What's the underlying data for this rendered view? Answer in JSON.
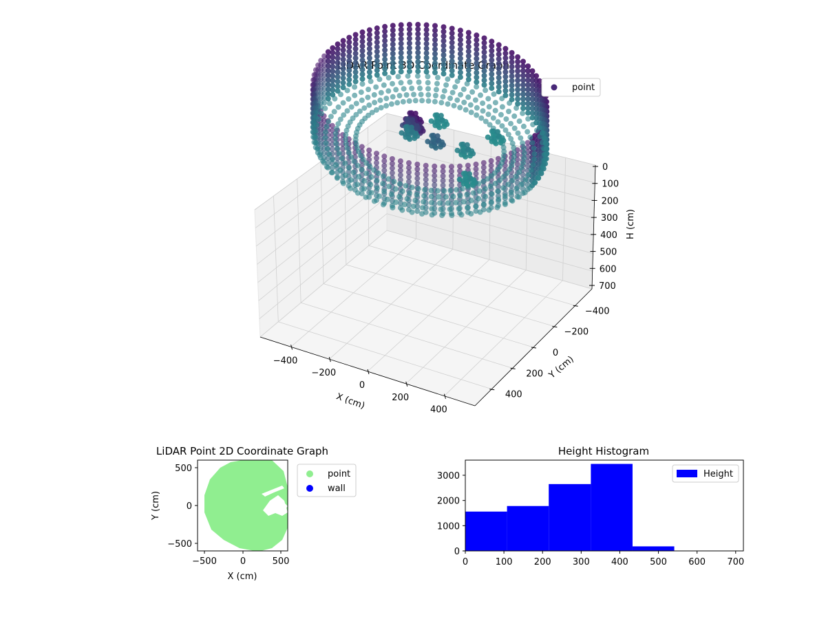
{
  "chart_data": [
    {
      "type": "scatter",
      "projection": "3d",
      "title": "LiDAR Point 3D Coordinate Graph",
      "xlabel": "X (cm)",
      "ylabel": "Y (cm)",
      "zlabel": "H (cm)",
      "xlim": [
        -560,
        560
      ],
      "ylim": [
        -560,
        560
      ],
      "zlim": [
        720,
        0
      ],
      "z_axis_inverted": true,
      "x_ticks": [
        "−400",
        "−200",
        "0",
        "200",
        "400"
      ],
      "y_ticks": [
        "−400",
        "−200",
        "0",
        "200",
        "400"
      ],
      "z_ticks": [
        "0",
        "100",
        "200",
        "300",
        "400",
        "500",
        "600",
        "700"
      ],
      "legend": {
        "placement": "top-right",
        "entries": [
          "point"
        ]
      },
      "colormap": "viridis (dark purple at high points, teal at low points)",
      "marker_color": "#482878",
      "grid": true,
      "series": [
        {
          "name": "point",
          "description_shape": "cylindrical wall ring of radius ~520 cm spanning heights ~0-300 cm, inner floor ring ~330 cm and central clutter",
          "wall_ring": {
            "radius": 520,
            "h_min": 0,
            "h_max": 300
          },
          "floor_ring": {
            "radius": 330,
            "h": 300
          },
          "center_clutter": [
            {
              "x": 20,
              "y": 180,
              "h": 0
            },
            {
              "x": 40,
              "y": 200,
              "h": 30
            },
            {
              "x": 0,
              "y": 150,
              "h": 60
            },
            {
              "x": -40,
              "y": 100,
              "h": 120
            },
            {
              "x": 60,
              "y": 50,
              "h": 200
            },
            {
              "x": -100,
              "y": 0,
              "h": 260
            },
            {
              "x": 150,
              "y": -60,
              "h": 280
            },
            {
              "x": -60,
              "y": -200,
              "h": 300
            },
            {
              "x": 250,
              "y": 100,
              "h": 300
            },
            {
              "x": 200,
              "y": -250,
              "h": 300
            }
          ]
        }
      ]
    },
    {
      "type": "scatter",
      "title": "LiDAR Point 2D Coordinate Graph",
      "xlabel": "X (cm)",
      "ylabel": "Y (cm)",
      "xlim": [
        -600,
        600
      ],
      "ylim": [
        -600,
        600
      ],
      "x_ticks": [
        "−500",
        "0",
        "500"
      ],
      "y_ticks": [
        "500",
        "0",
        "−500"
      ],
      "legend": {
        "placement": "outside-right",
        "entries": [
          "point",
          "wall"
        ]
      },
      "series": [
        {
          "name": "point",
          "color": "#90ee90",
          "shape": "filled disc radius ~520 cm centred near (30, 10)"
        },
        {
          "name": "wall",
          "color": "#0000ff",
          "points": []
        }
      ]
    },
    {
      "type": "bar",
      "subtype": "histogram",
      "title": "Height Histogram",
      "xlim": [
        0,
        720
      ],
      "ylim": [
        0,
        3600
      ],
      "x_ticks": [
        "0",
        "100",
        "200",
        "300",
        "400",
        "500",
        "600",
        "700"
      ],
      "y_ticks": [
        "0",
        "1000",
        "2000",
        "3000"
      ],
      "legend": {
        "placement": "top-right",
        "entries": [
          "Height"
        ]
      },
      "color": "#0000ff",
      "series": [
        {
          "name": "Height",
          "bin_edges": [
            0,
            108,
            216,
            325,
            433,
            541,
            650,
            720
          ],
          "counts": [
            1560,
            1780,
            2650,
            3450,
            180,
            0,
            0
          ]
        }
      ]
    }
  ]
}
